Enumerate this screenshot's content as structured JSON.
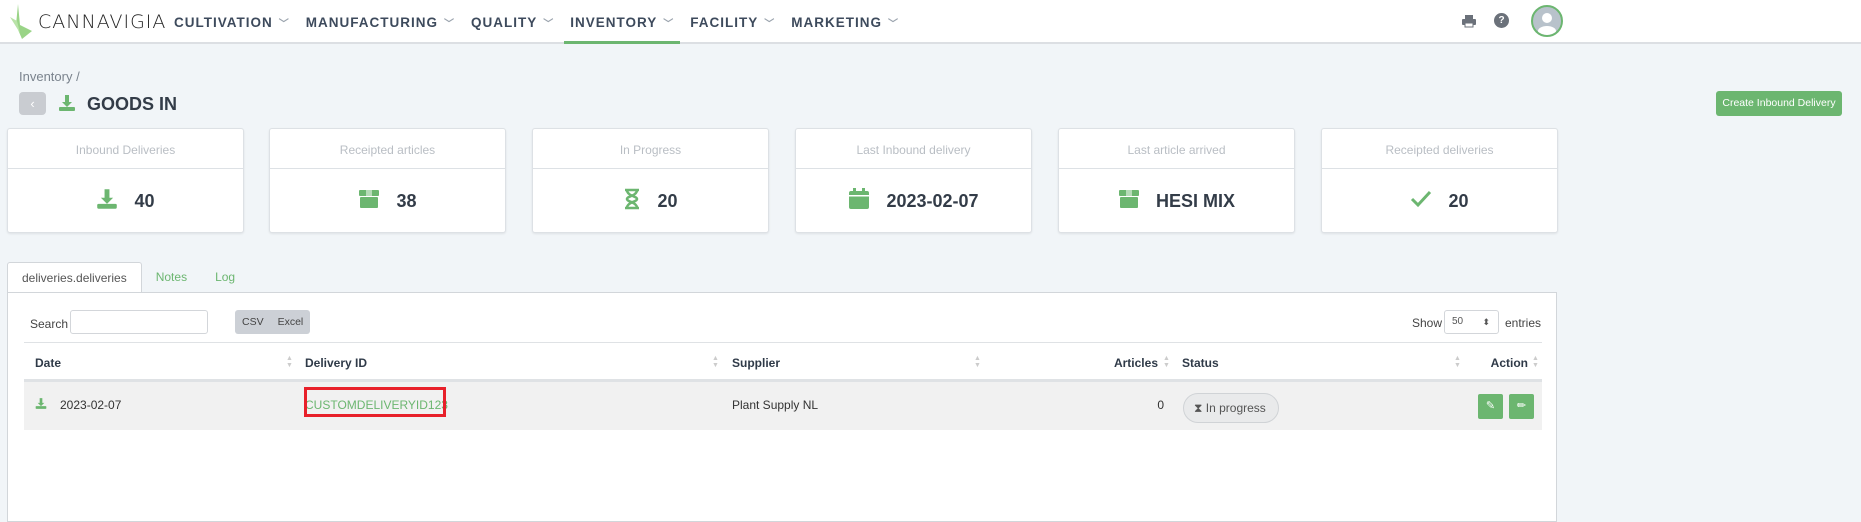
{
  "brand": {
    "name": "CANNAVIGIA",
    "accent": "#6cb670"
  },
  "nav": {
    "items": [
      {
        "label": "CULTIVATION"
      },
      {
        "label": "MANUFACTURING"
      },
      {
        "label": "QUALITY"
      },
      {
        "label": "INVENTORY",
        "active": true
      },
      {
        "label": "FACILITY"
      },
      {
        "label": "MARKETING"
      }
    ],
    "icons": [
      "print-icon",
      "help-icon",
      "user-avatar"
    ]
  },
  "breadcrumb": "Inventory /",
  "page": {
    "title": "GOODS IN",
    "create_button": "Create Inbound Delivery"
  },
  "cards": [
    {
      "label": "Inbound Deliveries",
      "value": "40",
      "icon": "download-icon"
    },
    {
      "label": "Receipted articles",
      "value": "38",
      "icon": "box-icon"
    },
    {
      "label": "In Progress",
      "value": "20",
      "icon": "hourglass-icon"
    },
    {
      "label": "Last Inbound delivery",
      "value": "2023-02-07",
      "icon": "calendar-icon"
    },
    {
      "label": "Last article arrived",
      "value": "HESI MIX",
      "icon": "box-icon"
    },
    {
      "label": "Receipted deliveries",
      "value": "20",
      "icon": "check-icon"
    }
  ],
  "tabs": [
    {
      "label": "deliveries.deliveries",
      "active": true
    },
    {
      "label": "Notes"
    },
    {
      "label": "Log"
    }
  ],
  "table": {
    "search_label": "Search",
    "search_value": "",
    "export": [
      "CSV",
      "Excel"
    ],
    "show_label": "Show",
    "page_size": "50",
    "entries_label": "entries",
    "columns": [
      "Date",
      "Delivery ID",
      "Supplier",
      "Articles",
      "Status",
      "Action"
    ],
    "rows": [
      {
        "date": "2023-02-07",
        "delivery_id": "CUSTOMDELIVERYID123",
        "supplier": "Plant Supply NL",
        "articles": "0",
        "status": "In progress"
      }
    ]
  }
}
